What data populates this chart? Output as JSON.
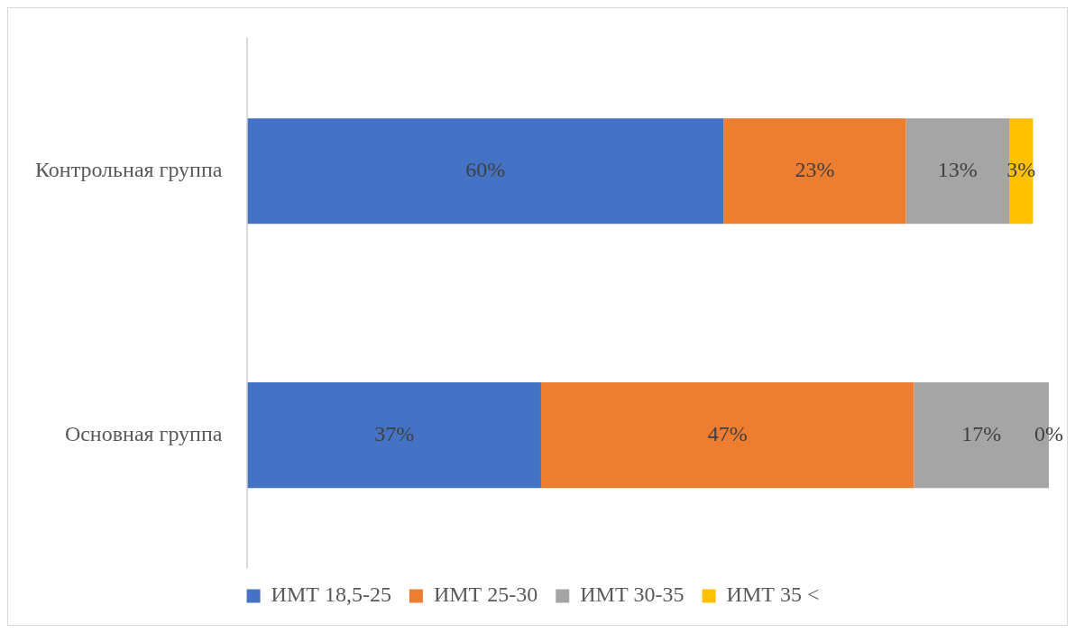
{
  "chart_data": {
    "type": "bar",
    "orientation": "horizontal",
    "stacked": true,
    "legend": "bottom",
    "categories": [
      "Контрольная группа",
      "Основная группа"
    ],
    "series": [
      {
        "name": "ИМТ 18,5-25",
        "color": "#4472c4",
        "values": [
          60,
          37
        ],
        "value_labels": [
          "60%",
          "37%"
        ]
      },
      {
        "name": "ИМТ 25-30",
        "color": "#ed7d31",
        "values": [
          23,
          47
        ],
        "value_labels": [
          "23%",
          "47%"
        ]
      },
      {
        "name": "ИМТ 30-35",
        "color": "#a5a5a5",
        "values": [
          13,
          17
        ],
        "value_labels": [
          "13%",
          "17%"
        ]
      },
      {
        "name": "ИМТ 35 <",
        "color": "#ffc000",
        "values": [
          3,
          0
        ],
        "value_labels": [
          "3%",
          "0%"
        ]
      }
    ]
  }
}
